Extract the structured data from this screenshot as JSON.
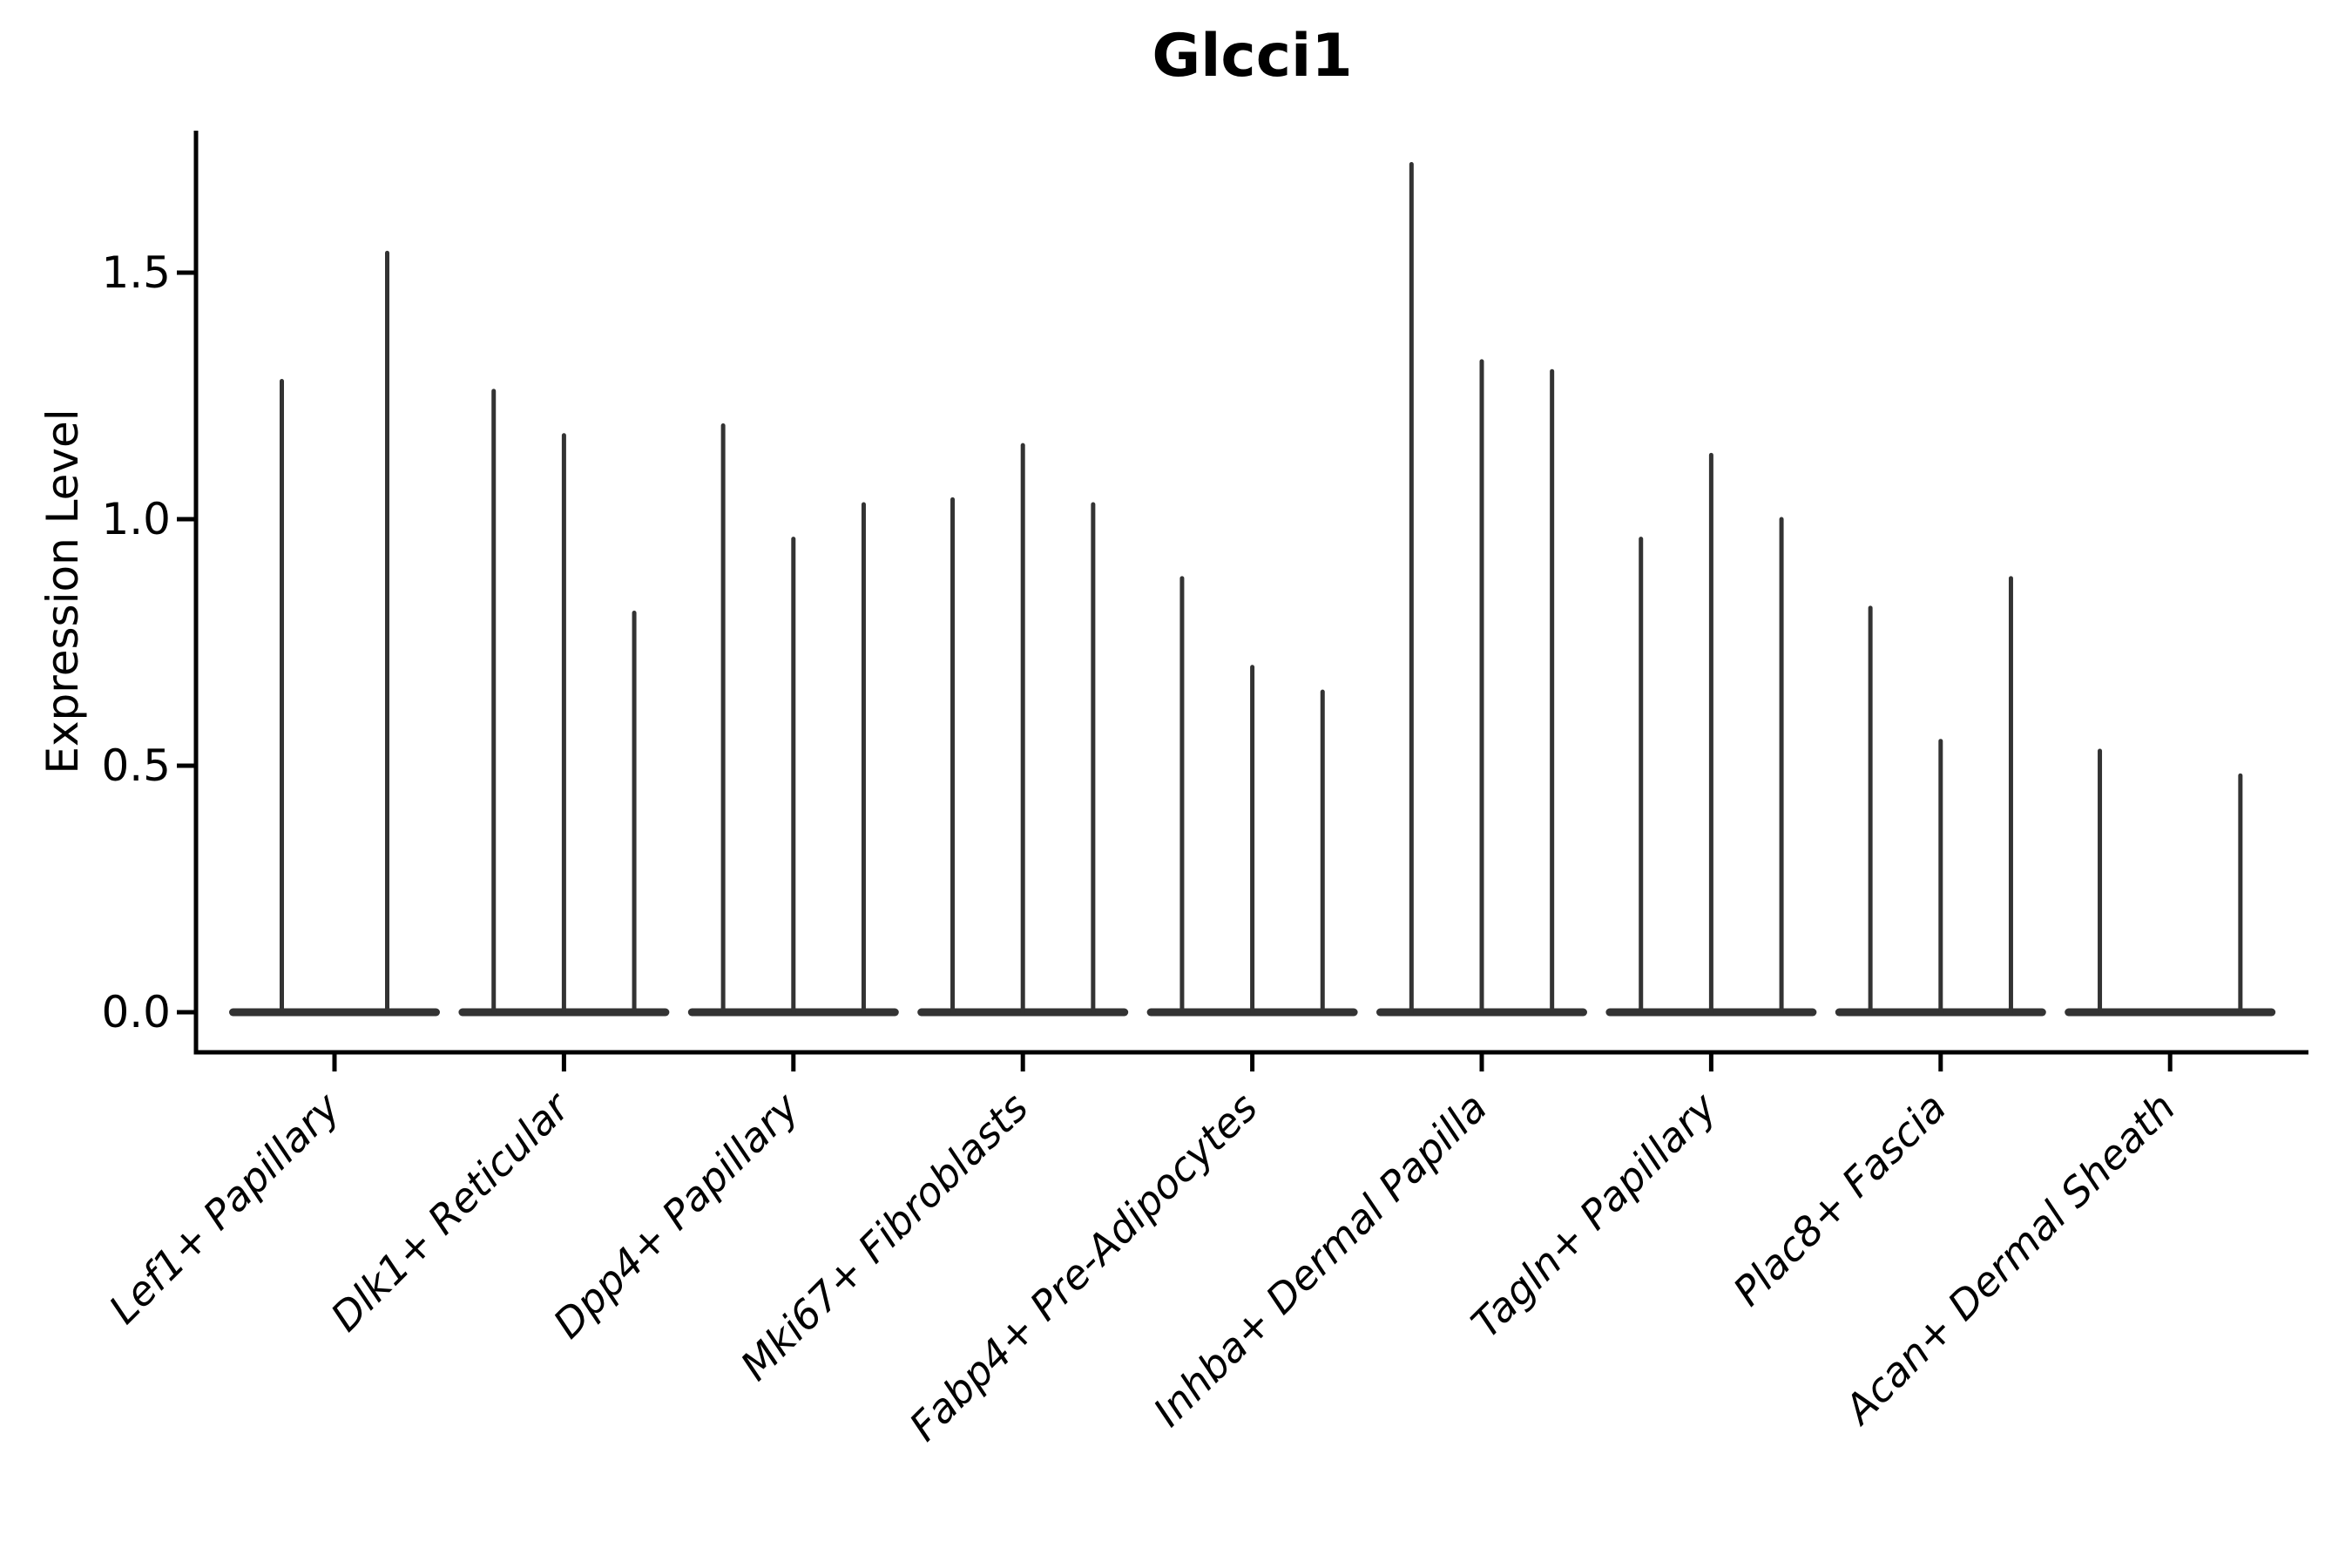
{
  "chart_data": {
    "type": "violin",
    "title": "Glcci1",
    "xlabel": "",
    "ylabel": "Expression Level",
    "ytick_labels": [
      "0.0",
      "0.5",
      "1.0",
      "1.5"
    ],
    "ytick_values": [
      0.0,
      0.5,
      1.0,
      1.5
    ],
    "ylim": [
      -0.08,
      1.79
    ],
    "grid": "off",
    "legend": "none",
    "categories": [
      "Lef1+ Papillary",
      "Dlk1+ Reticular",
      "Dpp4+ Papillary",
      "Mki67+ Fibroblasts",
      "Fabp4+ Pre-Adipocytes",
      "Inhba+ Dermal Papilla",
      "Tagln+ Papillary",
      "Plac8+ Fascia",
      "Acan+ Dermal Sheath"
    ],
    "violins": [
      {
        "category": "Lef1+ Papillary",
        "spike_max_values": [
          1.28,
          1.54
        ]
      },
      {
        "category": "Dlk1+ Reticular",
        "spike_max_values": [
          1.26,
          1.17,
          0.81
        ]
      },
      {
        "category": "Dpp4+ Papillary",
        "spike_max_values": [
          1.19,
          0.96,
          1.03
        ]
      },
      {
        "category": "Mki67+ Fibroblasts",
        "spike_max_values": [
          1.04,
          1.15,
          1.03
        ]
      },
      {
        "category": "Fabp4+ Pre-Adipocytes",
        "spike_max_values": [
          0.88,
          0.7,
          0.65
        ]
      },
      {
        "category": "Inhba+ Dermal Papilla",
        "spike_max_values": [
          1.72,
          1.32,
          1.3
        ]
      },
      {
        "category": "Tagln+ Papillary",
        "spike_max_values": [
          0.96,
          1.13,
          1.0
        ]
      },
      {
        "category": "Plac8+ Fascia",
        "spike_max_values": [
          0.82,
          0.55,
          0.88
        ]
      },
      {
        "category": "Acan+ Dermal Sheath",
        "spike_max_values": [
          0.53,
          0,
          0.48
        ]
      }
    ],
    "colors": {
      "violin": "#333333",
      "axis": "#000000",
      "text": "#000000",
      "background": "#ffffff"
    }
  }
}
